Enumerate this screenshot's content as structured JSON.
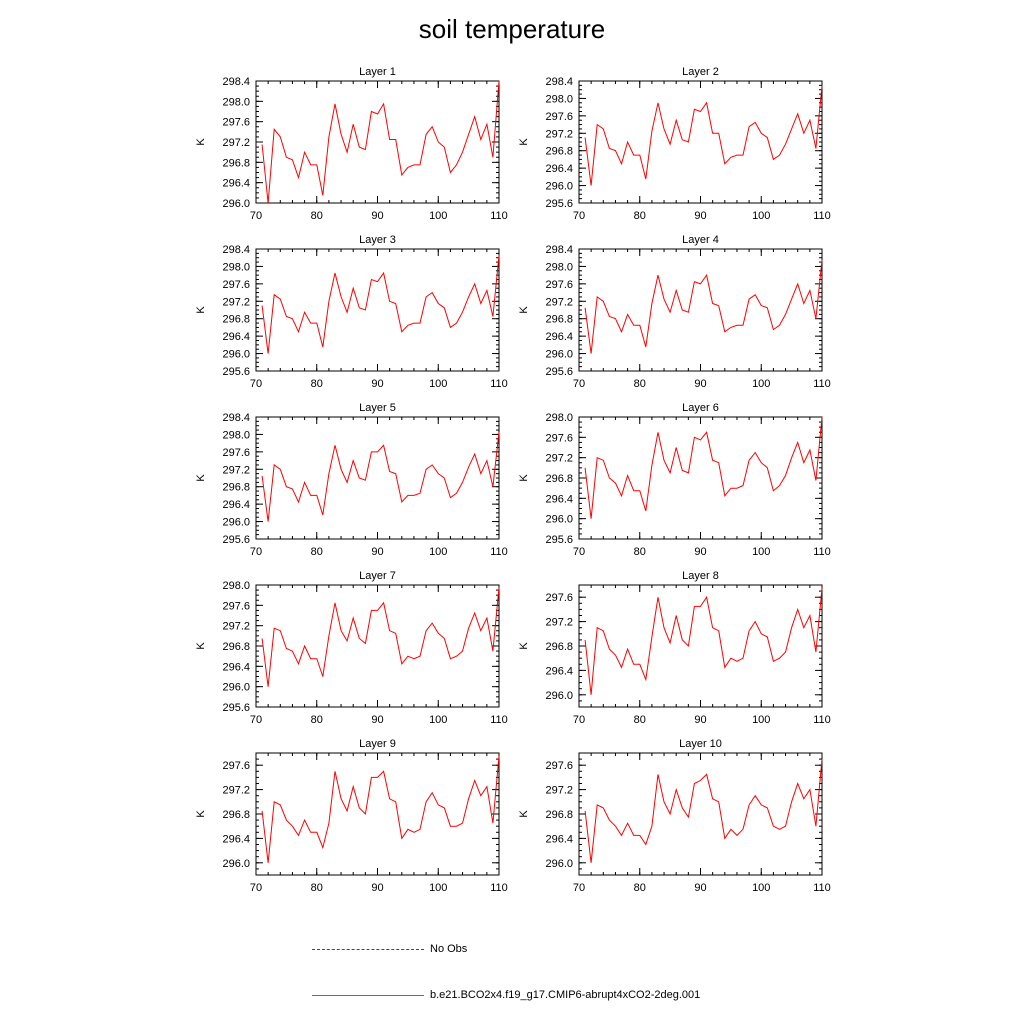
{
  "title": "soil temperature",
  "legend": {
    "entries": [
      {
        "label": "No Obs",
        "color": "#3a3ab8",
        "style": "dashed"
      },
      {
        "label": "b.e21.BCO2x4.f19_g17.CMIP6-abrupt4xCO2-2deg.001",
        "color": "#ff0000",
        "style": "solid"
      }
    ]
  },
  "colors": {
    "series": "#ff0000",
    "axis": "#000000"
  },
  "chart_data": [
    {
      "type": "line",
      "title": "Layer 1",
      "ylabel": "K",
      "xlim": [
        70,
        110
      ],
      "ylim": [
        296.0,
        298.4
      ],
      "yticks": [
        296.0,
        296.4,
        296.8,
        297.2,
        297.6,
        298.0,
        298.4
      ],
      "xticks": [
        70,
        80,
        90,
        100,
        110
      ],
      "x": [
        71,
        72,
        73,
        74,
        75,
        76,
        77,
        78,
        79,
        80,
        81,
        82,
        83,
        84,
        85,
        86,
        87,
        88,
        89,
        90,
        91,
        92,
        93,
        94,
        95,
        96,
        97,
        98,
        99,
        100,
        101,
        102,
        103,
        104,
        105,
        106,
        107,
        108,
        109,
        110
      ],
      "values": [
        297.15,
        296.0,
        297.45,
        297.3,
        296.9,
        296.85,
        296.5,
        297.0,
        296.75,
        296.75,
        296.15,
        297.3,
        297.95,
        297.35,
        297.0,
        297.55,
        297.1,
        297.05,
        297.8,
        297.75,
        297.95,
        297.25,
        297.25,
        296.55,
        296.7,
        296.75,
        296.75,
        297.35,
        297.5,
        297.2,
        297.1,
        296.6,
        296.75,
        297.0,
        297.35,
        297.7,
        297.25,
        297.55,
        296.9,
        298.4
      ]
    },
    {
      "type": "line",
      "title": "Layer 2",
      "ylabel": "K",
      "xlim": [
        70,
        110
      ],
      "ylim": [
        295.6,
        298.4
      ],
      "yticks": [
        295.6,
        296.0,
        296.4,
        296.8,
        297.2,
        297.6,
        298.0,
        298.4
      ],
      "xticks": [
        70,
        80,
        90,
        100,
        110
      ],
      "x": [
        71,
        72,
        73,
        74,
        75,
        76,
        77,
        78,
        79,
        80,
        81,
        82,
        83,
        84,
        85,
        86,
        87,
        88,
        89,
        90,
        91,
        92,
        93,
        94,
        95,
        96,
        97,
        98,
        99,
        100,
        101,
        102,
        103,
        104,
        105,
        106,
        107,
        108,
        109,
        110
      ],
      "values": [
        297.1,
        296.0,
        297.4,
        297.3,
        296.85,
        296.8,
        296.5,
        297.0,
        296.7,
        296.7,
        296.15,
        297.25,
        297.9,
        297.3,
        296.95,
        297.5,
        297.05,
        297.0,
        297.75,
        297.7,
        297.9,
        297.2,
        297.2,
        296.5,
        296.65,
        296.7,
        296.7,
        297.35,
        297.45,
        297.2,
        297.1,
        296.6,
        296.7,
        296.95,
        297.3,
        297.65,
        297.2,
        297.5,
        296.85,
        298.3
      ]
    },
    {
      "type": "line",
      "title": "Layer 3",
      "ylabel": "K",
      "xlim": [
        70,
        110
      ],
      "ylim": [
        295.6,
        298.4
      ],
      "yticks": [
        295.6,
        296.0,
        296.4,
        296.8,
        297.2,
        297.6,
        298.0,
        298.4
      ],
      "xticks": [
        70,
        80,
        90,
        100,
        110
      ],
      "x": [
        71,
        72,
        73,
        74,
        75,
        76,
        77,
        78,
        79,
        80,
        81,
        82,
        83,
        84,
        85,
        86,
        87,
        88,
        89,
        90,
        91,
        92,
        93,
        94,
        95,
        96,
        97,
        98,
        99,
        100,
        101,
        102,
        103,
        104,
        105,
        106,
        107,
        108,
        109,
        110
      ],
      "values": [
        297.1,
        296.0,
        297.35,
        297.25,
        296.85,
        296.8,
        296.5,
        296.95,
        296.7,
        296.7,
        296.15,
        297.2,
        297.85,
        297.3,
        296.95,
        297.5,
        297.05,
        297.0,
        297.7,
        297.65,
        297.85,
        297.2,
        297.15,
        296.5,
        296.65,
        296.7,
        296.7,
        297.3,
        297.4,
        297.15,
        297.05,
        296.6,
        296.7,
        296.95,
        297.3,
        297.6,
        297.15,
        297.45,
        296.85,
        298.25
      ]
    },
    {
      "type": "line",
      "title": "Layer 4",
      "ylabel": "K",
      "xlim": [
        70,
        110
      ],
      "ylim": [
        295.6,
        298.4
      ],
      "yticks": [
        295.6,
        296.0,
        296.4,
        296.8,
        297.2,
        297.6,
        298.0,
        298.4
      ],
      "xticks": [
        70,
        80,
        90,
        100,
        110
      ],
      "x": [
        71,
        72,
        73,
        74,
        75,
        76,
        77,
        78,
        79,
        80,
        81,
        82,
        83,
        84,
        85,
        86,
        87,
        88,
        89,
        90,
        91,
        92,
        93,
        94,
        95,
        96,
        97,
        98,
        99,
        100,
        101,
        102,
        103,
        104,
        105,
        106,
        107,
        108,
        109,
        110
      ],
      "values": [
        297.05,
        296.0,
        297.3,
        297.2,
        296.85,
        296.8,
        296.5,
        296.9,
        296.65,
        296.65,
        296.15,
        297.15,
        297.8,
        297.25,
        296.95,
        297.45,
        297.0,
        296.95,
        297.65,
        297.6,
        297.8,
        297.15,
        297.1,
        296.5,
        296.6,
        296.65,
        296.65,
        297.25,
        297.35,
        297.1,
        297.05,
        296.55,
        296.65,
        296.9,
        297.25,
        297.6,
        297.15,
        297.45,
        296.8,
        298.15
      ]
    },
    {
      "type": "line",
      "title": "Layer 5",
      "ylabel": "K",
      "xlim": [
        70,
        110
      ],
      "ylim": [
        295.6,
        298.4
      ],
      "yticks": [
        295.6,
        296.0,
        296.4,
        296.8,
        297.2,
        297.6,
        298.0,
        298.4
      ],
      "xticks": [
        70,
        80,
        90,
        100,
        110
      ],
      "x": [
        71,
        72,
        73,
        74,
        75,
        76,
        77,
        78,
        79,
        80,
        81,
        82,
        83,
        84,
        85,
        86,
        87,
        88,
        89,
        90,
        91,
        92,
        93,
        94,
        95,
        96,
        97,
        98,
        99,
        100,
        101,
        102,
        103,
        104,
        105,
        106,
        107,
        108,
        109,
        110
      ],
      "values": [
        297.05,
        296.0,
        297.3,
        297.2,
        296.8,
        296.75,
        296.45,
        296.9,
        296.6,
        296.6,
        296.15,
        297.1,
        297.75,
        297.2,
        296.9,
        297.4,
        297.0,
        296.95,
        297.6,
        297.6,
        297.75,
        297.15,
        297.1,
        296.45,
        296.6,
        296.6,
        296.65,
        297.2,
        297.3,
        297.1,
        297.0,
        296.55,
        296.65,
        296.9,
        297.25,
        297.55,
        297.1,
        297.4,
        296.8,
        298.05
      ]
    },
    {
      "type": "line",
      "title": "Layer 6",
      "ylabel": "K",
      "xlim": [
        70,
        110
      ],
      "ylim": [
        295.6,
        298.0
      ],
      "yticks": [
        295.6,
        296.0,
        296.4,
        296.8,
        297.2,
        297.6,
        298.0
      ],
      "xticks": [
        70,
        80,
        90,
        100,
        110
      ],
      "x": [
        71,
        72,
        73,
        74,
        75,
        76,
        77,
        78,
        79,
        80,
        81,
        82,
        83,
        84,
        85,
        86,
        87,
        88,
        89,
        90,
        91,
        92,
        93,
        94,
        95,
        96,
        97,
        98,
        99,
        100,
        101,
        102,
        103,
        104,
        105,
        106,
        107,
        108,
        109,
        110
      ],
      "values": [
        297.0,
        296.0,
        297.2,
        297.15,
        296.8,
        296.7,
        296.45,
        296.85,
        296.55,
        296.55,
        296.15,
        297.05,
        297.7,
        297.15,
        296.9,
        297.4,
        296.95,
        296.9,
        297.6,
        297.55,
        297.7,
        297.15,
        297.1,
        296.45,
        296.6,
        296.6,
        296.65,
        297.15,
        297.3,
        297.1,
        297.0,
        296.55,
        296.65,
        296.85,
        297.2,
        297.5,
        297.1,
        297.35,
        296.75,
        298.0
      ]
    },
    {
      "type": "line",
      "title": "Layer 7",
      "ylabel": "K",
      "xlim": [
        70,
        110
      ],
      "ylim": [
        295.6,
        298.0
      ],
      "yticks": [
        295.6,
        296.0,
        296.4,
        296.8,
        297.2,
        297.6,
        298.0
      ],
      "xticks": [
        70,
        80,
        90,
        100,
        110
      ],
      "x": [
        71,
        72,
        73,
        74,
        75,
        76,
        77,
        78,
        79,
        80,
        81,
        82,
        83,
        84,
        85,
        86,
        87,
        88,
        89,
        90,
        91,
        92,
        93,
        94,
        95,
        96,
        97,
        98,
        99,
        100,
        101,
        102,
        103,
        104,
        105,
        106,
        107,
        108,
        109,
        110
      ],
      "values": [
        296.95,
        296.0,
        297.15,
        297.1,
        296.75,
        296.7,
        296.45,
        296.8,
        296.55,
        296.55,
        296.2,
        297.0,
        297.65,
        297.1,
        296.9,
        297.35,
        296.95,
        296.85,
        297.5,
        297.5,
        297.65,
        297.1,
        297.05,
        296.45,
        296.6,
        296.55,
        296.6,
        297.1,
        297.25,
        297.05,
        296.95,
        296.55,
        296.6,
        296.7,
        297.15,
        297.45,
        297.1,
        297.35,
        296.7,
        297.95
      ]
    },
    {
      "type": "line",
      "title": "Layer 8",
      "ylabel": "K",
      "xlim": [
        70,
        110
      ],
      "ylim": [
        295.8,
        297.8
      ],
      "yticks": [
        296.0,
        296.4,
        296.8,
        297.2,
        297.6
      ],
      "xticks": [
        70,
        80,
        90,
        100,
        110
      ],
      "x": [
        71,
        72,
        73,
        74,
        75,
        76,
        77,
        78,
        79,
        80,
        81,
        82,
        83,
        84,
        85,
        86,
        87,
        88,
        89,
        90,
        91,
        92,
        93,
        94,
        95,
        96,
        97,
        98,
        99,
        100,
        101,
        102,
        103,
        104,
        105,
        106,
        107,
        108,
        109,
        110
      ],
      "values": [
        296.9,
        296.0,
        297.1,
        297.05,
        296.75,
        296.65,
        296.45,
        296.75,
        296.5,
        296.5,
        296.25,
        296.95,
        297.6,
        297.1,
        296.85,
        297.3,
        296.9,
        296.8,
        297.45,
        297.45,
        297.6,
        297.1,
        297.05,
        296.45,
        296.6,
        296.55,
        296.6,
        297.05,
        297.2,
        297.0,
        296.95,
        296.55,
        296.6,
        296.7,
        297.1,
        297.4,
        297.1,
        297.3,
        296.7,
        297.75
      ]
    },
    {
      "type": "line",
      "title": "Layer 9",
      "ylabel": "K",
      "xlim": [
        70,
        110
      ],
      "ylim": [
        295.8,
        297.8
      ],
      "yticks": [
        296.0,
        296.4,
        296.8,
        297.2,
        297.6
      ],
      "xticks": [
        70,
        80,
        90,
        100,
        110
      ],
      "x": [
        71,
        72,
        73,
        74,
        75,
        76,
        77,
        78,
        79,
        80,
        81,
        82,
        83,
        84,
        85,
        86,
        87,
        88,
        89,
        90,
        91,
        92,
        93,
        94,
        95,
        96,
        97,
        98,
        99,
        100,
        101,
        102,
        103,
        104,
        105,
        106,
        107,
        108,
        109,
        110
      ],
      "values": [
        296.85,
        296.0,
        297.0,
        296.95,
        296.7,
        296.6,
        296.45,
        296.7,
        296.5,
        296.5,
        296.25,
        296.65,
        297.5,
        297.05,
        296.85,
        297.25,
        296.9,
        296.8,
        297.4,
        297.4,
        297.5,
        297.05,
        297.0,
        296.4,
        296.55,
        296.5,
        296.55,
        297.0,
        297.15,
        296.95,
        296.9,
        296.6,
        296.6,
        296.65,
        297.05,
        297.35,
        297.1,
        297.25,
        296.65,
        297.75
      ]
    },
    {
      "type": "line",
      "title": "Layer 10",
      "ylabel": "K",
      "xlim": [
        70,
        110
      ],
      "ylim": [
        295.8,
        297.8
      ],
      "yticks": [
        296.0,
        296.4,
        296.8,
        297.2,
        297.6
      ],
      "xticks": [
        70,
        80,
        90,
        100,
        110
      ],
      "x": [
        71,
        72,
        73,
        74,
        75,
        76,
        77,
        78,
        79,
        80,
        81,
        82,
        83,
        84,
        85,
        86,
        87,
        88,
        89,
        90,
        91,
        92,
        93,
        94,
        95,
        96,
        97,
        98,
        99,
        100,
        101,
        102,
        103,
        104,
        105,
        106,
        107,
        108,
        109,
        110
      ],
      "values": [
        296.85,
        296.0,
        296.95,
        296.9,
        296.7,
        296.6,
        296.45,
        296.65,
        296.45,
        296.45,
        296.3,
        296.6,
        297.45,
        297.0,
        296.8,
        297.2,
        296.9,
        296.75,
        297.3,
        297.35,
        297.45,
        297.05,
        297.0,
        296.4,
        296.55,
        296.45,
        296.55,
        296.95,
        297.1,
        296.95,
        296.9,
        296.6,
        296.55,
        296.6,
        297.0,
        297.3,
        297.05,
        297.2,
        296.6,
        297.7
      ]
    }
  ]
}
